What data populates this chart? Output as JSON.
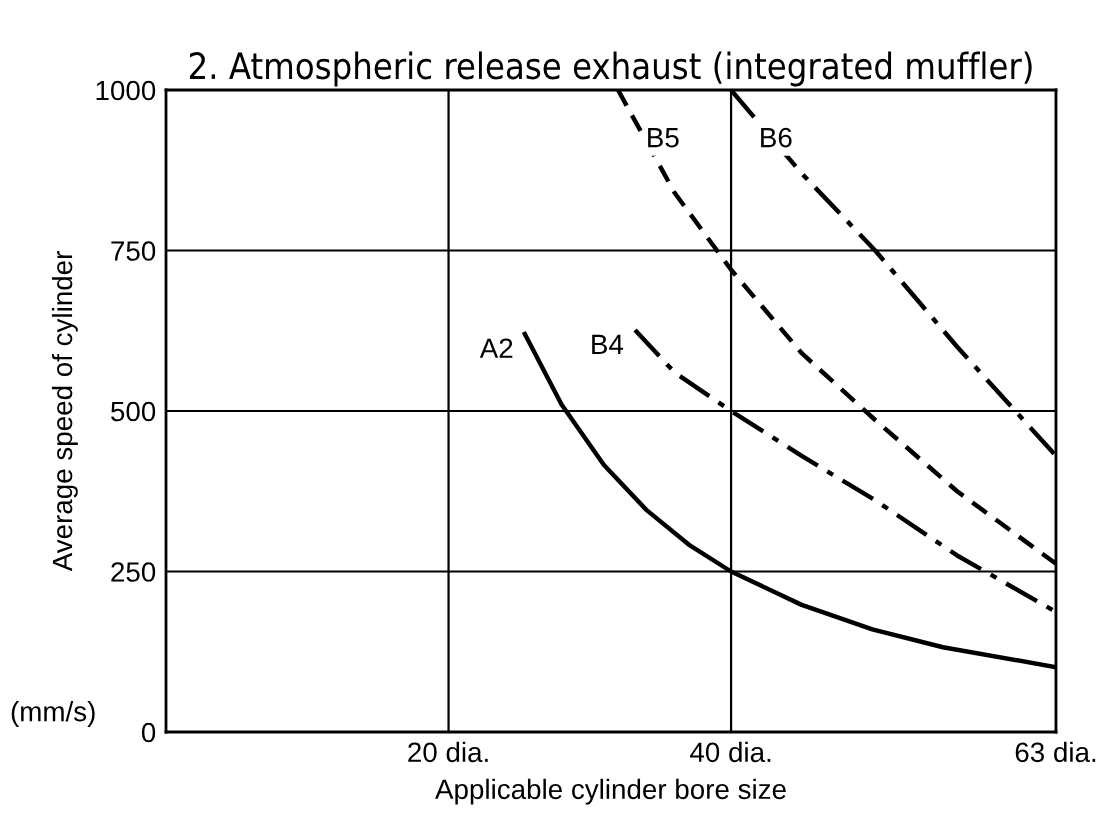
{
  "chart_data": {
    "type": "line",
    "title": "2. Atmospheric release exhaust (integrated muffler)",
    "xlabel": "Applicable cylinder bore size",
    "ylabel": "Average speed of cylinder",
    "annotations": [
      "(mm/s)"
    ],
    "xlim": [
      0,
      63
    ],
    "xticks": [
      {
        "value": 20,
        "label": "20 dia."
      },
      {
        "value": 40,
        "label": "40 dia."
      },
      {
        "value": 63,
        "label": "63 dia."
      }
    ],
    "ylim": [
      0,
      1000
    ],
    "yticks": [
      0,
      250,
      500,
      750,
      1000
    ],
    "grid": true,
    "legend": false,
    "series": [
      {
        "name": "A2",
        "color": "#000000",
        "line_style": "solid",
        "x": [
          25.4,
          28,
          31,
          34,
          37,
          40,
          45,
          50,
          55,
          63
        ],
        "values": [
          620,
          510,
          416,
          346,
          292,
          250,
          198,
          160,
          132,
          101
        ]
      },
      {
        "name": "B4",
        "color": "#000000",
        "line_style": "dashdot",
        "x": [
          33.2,
          36,
          40,
          45,
          50.2,
          56,
          63
        ],
        "values": [
          626,
          560,
          500,
          430,
          361,
          275,
          187
        ]
      },
      {
        "name": "B5",
        "color": "#000000",
        "line_style": "dashed",
        "x": [
          32,
          36,
          40,
          45,
          50.2,
          56,
          63
        ],
        "values": [
          1000,
          840,
          720,
          590,
          486,
          375,
          262
        ]
      },
      {
        "name": "B6",
        "color": "#000000",
        "line_style": "dashdot",
        "x": [
          40,
          45,
          50.2,
          56,
          63
        ],
        "values": [
          1000,
          870,
          750,
          600,
          430
        ]
      }
    ]
  }
}
